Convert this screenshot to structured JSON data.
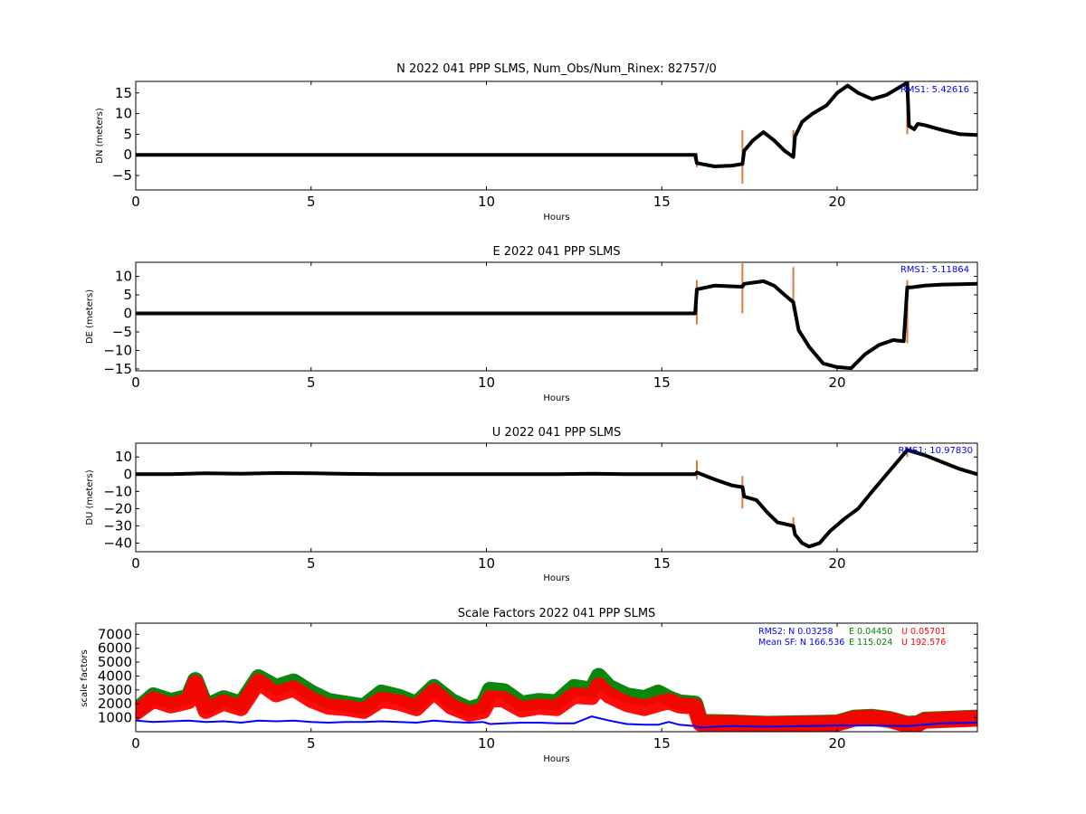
{
  "chart_data": [
    {
      "type": "scatter",
      "title": "N 2022 041 PPP  SLMS, Num_Obs/Num_Rinex: 82757/0",
      "xlabel": "Hours",
      "ylabel": "DN (meters)",
      "xlim": [
        0,
        24
      ],
      "ylim": [
        -8.5,
        17.8
      ],
      "xticks": [
        0,
        5,
        10,
        15,
        20
      ],
      "yticks": [
        -5,
        0,
        5,
        10,
        15
      ],
      "rms_label": "RMS1:  5.42616",
      "series": [
        {
          "color": "#000000",
          "x": [
            0,
            1,
            2,
            3,
            4,
            5,
            6,
            7,
            8,
            9,
            9.9,
            10.1,
            11,
            12,
            13,
            14,
            14.8,
            15.15,
            15.5,
            15.95,
            16.0,
            16.5,
            17.0,
            17.3,
            17.35,
            17.6,
            17.9,
            18.2,
            18.5,
            18.75,
            18.8,
            19.0,
            19.3,
            19.7,
            20.0,
            20.3,
            20.6,
            21.0,
            21.4,
            21.9,
            22.0,
            22.05,
            22.2,
            22.3,
            22.5,
            23.0,
            23.5,
            24.0
          ],
          "values": [
            0,
            0,
            0,
            0,
            0,
            0,
            0,
            0,
            0,
            0,
            0,
            0,
            0,
            0,
            0,
            0,
            0,
            0,
            0,
            0,
            -2.0,
            -2.8,
            -2.6,
            -2.2,
            1.0,
            3.5,
            5.5,
            3.5,
            1.0,
            -0.5,
            4.5,
            8.0,
            10.0,
            12.0,
            15.0,
            16.8,
            15.0,
            13.5,
            14.5,
            17.0,
            17.5,
            7.0,
            6.2,
            7.5,
            7.2,
            6.0,
            5.0,
            4.8
          ]
        }
      ],
      "spikes": [
        {
          "x": 16.0,
          "from": -3,
          "to": 0.5
        },
        {
          "x": 17.3,
          "from": -7,
          "to": 6
        },
        {
          "x": 18.75,
          "from": -1,
          "to": 6
        },
        {
          "x": 22.0,
          "from": 5,
          "to": 17
        }
      ]
    },
    {
      "type": "scatter",
      "title": "E 2022 041 PPP  SLMS",
      "xlabel": "Hours",
      "ylabel": "DE (meters)",
      "xlim": [
        0,
        24
      ],
      "ylim": [
        -15.5,
        13.8
      ],
      "xticks": [
        0,
        5,
        10,
        15,
        20
      ],
      "yticks": [
        -15,
        -10,
        -5,
        0,
        5,
        10
      ],
      "rms_label": "RMS1:  5.11864",
      "series": [
        {
          "color": "#000000",
          "x": [
            0,
            1,
            2,
            3,
            4,
            5,
            6,
            7,
            8,
            9,
            9.9,
            10.1,
            11,
            12,
            13,
            14,
            14.8,
            15.15,
            15.5,
            15.95,
            16.0,
            16.5,
            17.0,
            17.3,
            17.35,
            17.6,
            17.9,
            18.2,
            18.5,
            18.75,
            18.9,
            19.2,
            19.6,
            20.0,
            20.4,
            20.8,
            21.2,
            21.6,
            21.9,
            22.0,
            22.1,
            22.5,
            23.0,
            23.5,
            24.0
          ],
          "values": [
            0,
            0,
            0,
            0,
            0,
            0,
            0,
            0,
            0,
            0,
            0,
            0,
            0,
            0,
            0,
            0,
            0,
            0,
            0,
            0,
            6.5,
            7.5,
            7.3,
            7.2,
            8.0,
            8.3,
            8.7,
            7.5,
            5.0,
            3.0,
            -4.5,
            -9.0,
            -13.5,
            -14.5,
            -14.8,
            -11.0,
            -8.5,
            -7.2,
            -7.5,
            7.0,
            7.0,
            7.5,
            7.8,
            7.9,
            8.0
          ]
        }
      ],
      "spikes": [
        {
          "x": 16.0,
          "from": -3,
          "to": 9
        },
        {
          "x": 17.3,
          "from": 0,
          "to": 13.5
        },
        {
          "x": 18.75,
          "from": 1,
          "to": 12.5
        },
        {
          "x": 22.0,
          "from": -8,
          "to": 9
        }
      ]
    },
    {
      "type": "scatter",
      "title": "U 2022 041 PPP  SLMS",
      "xlabel": "Hours",
      "ylabel": "DU (meters)",
      "xlim": [
        0,
        24
      ],
      "ylim": [
        -45,
        18
      ],
      "xticks": [
        0,
        5,
        10,
        15,
        20
      ],
      "yticks": [
        -40,
        -30,
        -20,
        -10,
        0,
        10
      ],
      "rms_label": "RMS1:  10.97830",
      "series": [
        {
          "color": "#000000",
          "x": [
            0,
            1,
            2,
            3,
            4,
            5,
            6,
            7,
            8,
            9,
            9.9,
            10.1,
            11,
            12,
            13,
            14,
            14.8,
            15.15,
            15.5,
            15.95,
            16.0,
            16.5,
            17.0,
            17.3,
            17.35,
            17.7,
            18.0,
            18.3,
            18.75,
            18.8,
            19.0,
            19.2,
            19.5,
            19.8,
            20.2,
            20.6,
            21.0,
            21.5,
            22.0,
            22.5,
            23.0,
            23.5,
            24.0
          ],
          "values": [
            0,
            0,
            0.5,
            0.3,
            0.7,
            0.5,
            0.2,
            0,
            0,
            0,
            0,
            0,
            0,
            0,
            0.3,
            0,
            0,
            0,
            0,
            0,
            1.0,
            -3.0,
            -6.5,
            -7.5,
            -13.0,
            -15.0,
            -22.0,
            -28.0,
            -30.0,
            -35.0,
            -40.0,
            -42.0,
            -40.0,
            -33.0,
            -26.0,
            -20.0,
            -10.0,
            2.0,
            14.0,
            11.0,
            7.0,
            3.0,
            0.0
          ]
        }
      ],
      "spikes": [
        {
          "x": 16.0,
          "from": -3,
          "to": 8
        },
        {
          "x": 17.3,
          "from": -20,
          "to": -1
        },
        {
          "x": 18.75,
          "from": -33,
          "to": -25
        },
        {
          "x": 22.0,
          "from": 10,
          "to": 16
        }
      ]
    },
    {
      "type": "scatter",
      "title": "Scale Factors 2022 041 PPP  SLMS",
      "xlabel": "Hours",
      "ylabel": "scale factors",
      "xlim": [
        0,
        24
      ],
      "ylim": [
        0,
        7800
      ],
      "xticks": [
        0,
        5,
        10,
        15,
        20
      ],
      "yticks": [
        1000,
        2000,
        3000,
        4000,
        5000,
        6000,
        7000
      ],
      "annotations": {
        "rms_prefix": "RMS2: N  0.03258",
        "rms_e": "E  0.04450",
        "rms_u": "U  0.05701",
        "sf_prefix": "Mean SF: N 166.536",
        "sf_e": "E 115.024",
        "sf_u": "U 192.576"
      },
      "series": [
        {
          "color": "#008000",
          "x": [
            0,
            0.5,
            1,
            1.5,
            1.7,
            2,
            2.5,
            3,
            3.5,
            4,
            4.5,
            5,
            5.5,
            6,
            6.5,
            7,
            7.5,
            8,
            8.5,
            9,
            9.5,
            9.9,
            10.1,
            10.5,
            11,
            11.5,
            12,
            12.5,
            13,
            13.2,
            13.5,
            14,
            14.5,
            14.9,
            15.2,
            15.5,
            15.95,
            16.1,
            17,
            18,
            19,
            20,
            20.5,
            21,
            21.5,
            22,
            22.3,
            22.5,
            23,
            23.5,
            24
          ],
          "values": [
            1500,
            2600,
            2200,
            2500,
            3700,
            1800,
            2400,
            2000,
            3900,
            3200,
            3600,
            2800,
            2200,
            2000,
            1800,
            2800,
            2500,
            2000,
            3200,
            2200,
            1600,
            1900,
            3000,
            2900,
            2000,
            2200,
            2100,
            3200,
            3000,
            4000,
            3200,
            2600,
            2400,
            2800,
            2400,
            2100,
            2000,
            700,
            650,
            550,
            600,
            650,
            1000,
            1050,
            900,
            550,
            600,
            850,
            900,
            950,
            1000
          ]
        },
        {
          "color": "#ff0000",
          "x": [
            0,
            0.5,
            1,
            1.5,
            1.7,
            2,
            2.5,
            3,
            3.5,
            4,
            4.5,
            5,
            5.5,
            6,
            6.5,
            7,
            7.5,
            8,
            8.5,
            9,
            9.5,
            9.9,
            10.1,
            10.5,
            11,
            11.5,
            12,
            12.5,
            13,
            13.2,
            13.5,
            14,
            14.5,
            14.9,
            15.2,
            15.5,
            15.95,
            16.1,
            17,
            18,
            19,
            20,
            20.5,
            21,
            21.5,
            22,
            22.3,
            22.5,
            23,
            23.5,
            24
          ],
          "values": [
            1400,
            2300,
            1900,
            2200,
            3500,
            1500,
            2100,
            1700,
            3600,
            2700,
            3100,
            2300,
            1800,
            1700,
            1500,
            2300,
            2100,
            1700,
            2900,
            1800,
            1300,
            1500,
            2400,
            2300,
            1600,
            1800,
            1700,
            2600,
            2500,
            3300,
            2600,
            2000,
            1700,
            2000,
            2200,
            1900,
            1800,
            600,
            600,
            500,
            550,
            600,
            950,
            1000,
            850,
            500,
            550,
            800,
            850,
            900,
            950
          ]
        },
        {
          "color": "#0000ff",
          "x": [
            0,
            0.5,
            1,
            1.5,
            2,
            2.5,
            3,
            3.5,
            4,
            4.5,
            5,
            5.5,
            6,
            6.5,
            7,
            7.5,
            8,
            8.5,
            9,
            9.5,
            9.9,
            10.1,
            10.5,
            11,
            11.5,
            12,
            12.5,
            13,
            13.5,
            14,
            14.5,
            14.9,
            15.2,
            15.5,
            15.95,
            16.1,
            17,
            18,
            19,
            20,
            21,
            22,
            22.5,
            23,
            24
          ],
          "values": [
            800,
            700,
            750,
            800,
            700,
            750,
            650,
            800,
            750,
            800,
            700,
            650,
            700,
            700,
            750,
            700,
            650,
            800,
            700,
            650,
            700,
            550,
            600,
            650,
            650,
            600,
            600,
            1100,
            800,
            550,
            500,
            500,
            700,
            500,
            400,
            300,
            400,
            350,
            400,
            450,
            450,
            400,
            500,
            600,
            650
          ]
        }
      ]
    }
  ]
}
